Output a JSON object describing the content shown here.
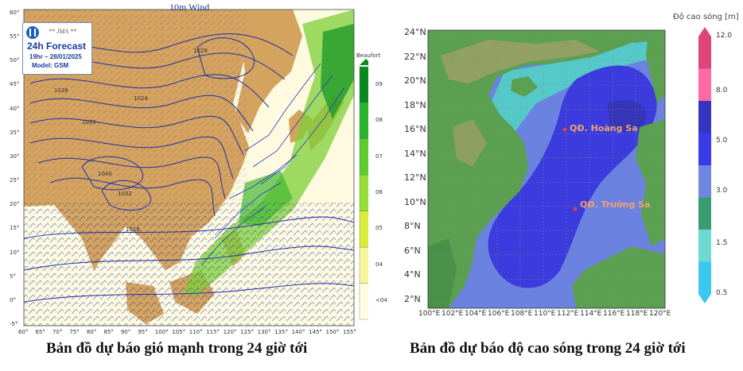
{
  "left_map": {
    "title": "10m Wind",
    "badge": {
      "org": "** JMA **",
      "forecast": "24h Forecast",
      "time": "19hr – 28/01/2025",
      "model": "Model: GSM"
    },
    "colorbar": {
      "title": "Beaufort",
      "levels": [
        "09",
        "08",
        "07",
        "06",
        "05",
        "04",
        "<04"
      ],
      "colors": [
        "#0a8a1e",
        "#29b32c",
        "#5ccc2c",
        "#96dd33",
        "#d9ec3a",
        "#f5f59a",
        "#fffde0"
      ]
    },
    "lat_labels": [
      "60°",
      "55°",
      "50°",
      "45°",
      "40°",
      "35°",
      "30°",
      "25°",
      "20°",
      "15°",
      "10°",
      "5°",
      "0°",
      "-5°"
    ],
    "lon_labels": [
      "60°",
      "65°",
      "70°",
      "75°",
      "80°",
      "85°",
      "90°",
      "95°",
      "100°",
      "105°",
      "110°",
      "115°",
      "120°",
      "125°",
      "130°",
      "135°",
      "140°",
      "145°",
      "150°",
      "155°"
    ],
    "isobar_labels": [
      "1016",
      "1020",
      "1024",
      "1028",
      "1032",
      "1036",
      "1040"
    ]
  },
  "right_map": {
    "colorbar": {
      "title": "Độ cao sóng [m]",
      "ticks": [
        "12.0",
        "8.0",
        "5.0",
        "3.0",
        "1.5",
        "0.5"
      ],
      "colors": [
        "#e0457a",
        "#ff6aa5",
        "#3535c0",
        "#3a3ae8",
        "#6e86e0",
        "#3a9a70",
        "#6dd9d0",
        "#3ac8f0"
      ]
    },
    "lat_labels": [
      "24°N",
      "22°N",
      "20°N",
      "18°N",
      "16°N",
      "14°N",
      "12°N",
      "10°N",
      "8°N",
      "6°N",
      "4°N",
      "2°N"
    ],
    "lon_labels": [
      "100°E",
      "102°E",
      "104°E",
      "106°E",
      "108°E",
      "110°E",
      "112°E",
      "114°E",
      "116°E",
      "118°E",
      "120°E"
    ],
    "places": [
      "QĐ. Hoàng Sa",
      "QĐ. Trường Sa"
    ],
    "colors": {
      "land": "#5aa050",
      "land_high": "#b8a070",
      "deep_water": "#3b3bde",
      "mid_water": "#6b82e0",
      "shallow": "#55c8c8"
    }
  },
  "captions": {
    "left": "Bản đồ dự báo gió mạnh trong 24 giờ tới",
    "right": "Bản đồ dự báo độ cao sóng trong 24 giờ tới"
  }
}
